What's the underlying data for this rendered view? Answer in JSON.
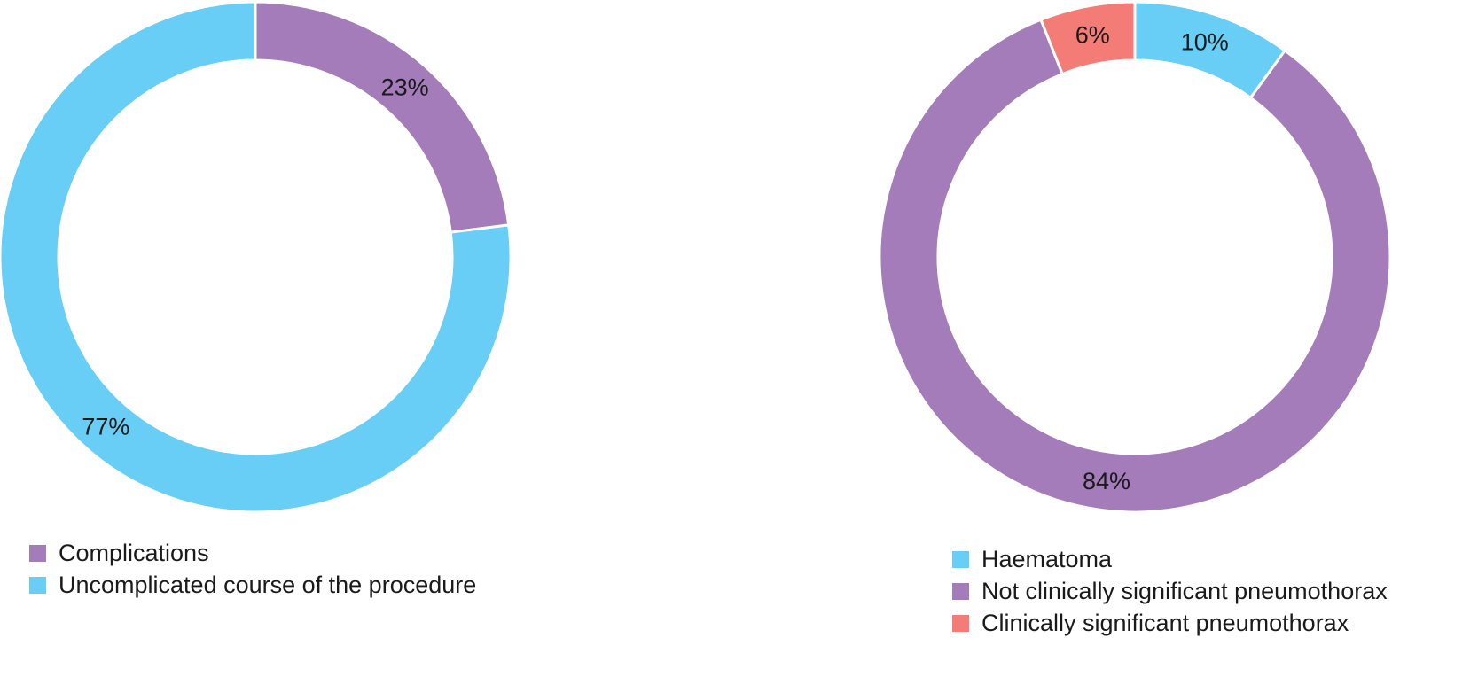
{
  "chart_data": [
    {
      "type": "pie",
      "donut": true,
      "slices": [
        {
          "label": "Complications",
          "value": 23,
          "display": "23%",
          "color": "#a37cb9"
        },
        {
          "label": "Uncomplicated course of the procedure",
          "value": 77,
          "display": "77%",
          "color": "#68cef5"
        }
      ],
      "legend": [
        {
          "label": "Complications",
          "color": "#a37cb9"
        },
        {
          "label": "Uncomplicated course of the procedure",
          "color": "#68cef5"
        }
      ],
      "legend_position": "bottom-left"
    },
    {
      "type": "pie",
      "donut": true,
      "slices": [
        {
          "label": "Haematoma",
          "value": 10,
          "display": "10%",
          "color": "#68cef5"
        },
        {
          "label": "Not clinically significant pneumothorax",
          "value": 84,
          "display": "84%",
          "color": "#a37cb9"
        },
        {
          "label": "Clinically significant pneumothorax",
          "value": 6,
          "display": "6%",
          "color": "#f47c77"
        }
      ],
      "legend": [
        {
          "label": "Haematoma",
          "color": "#68cef5"
        },
        {
          "label": "Not clinically significant pneumothorax",
          "color": "#a37cb9"
        },
        {
          "label": "Clinically significant pneumothorax",
          "color": "#f47c77"
        }
      ],
      "legend_position": "bottom-left"
    }
  ]
}
